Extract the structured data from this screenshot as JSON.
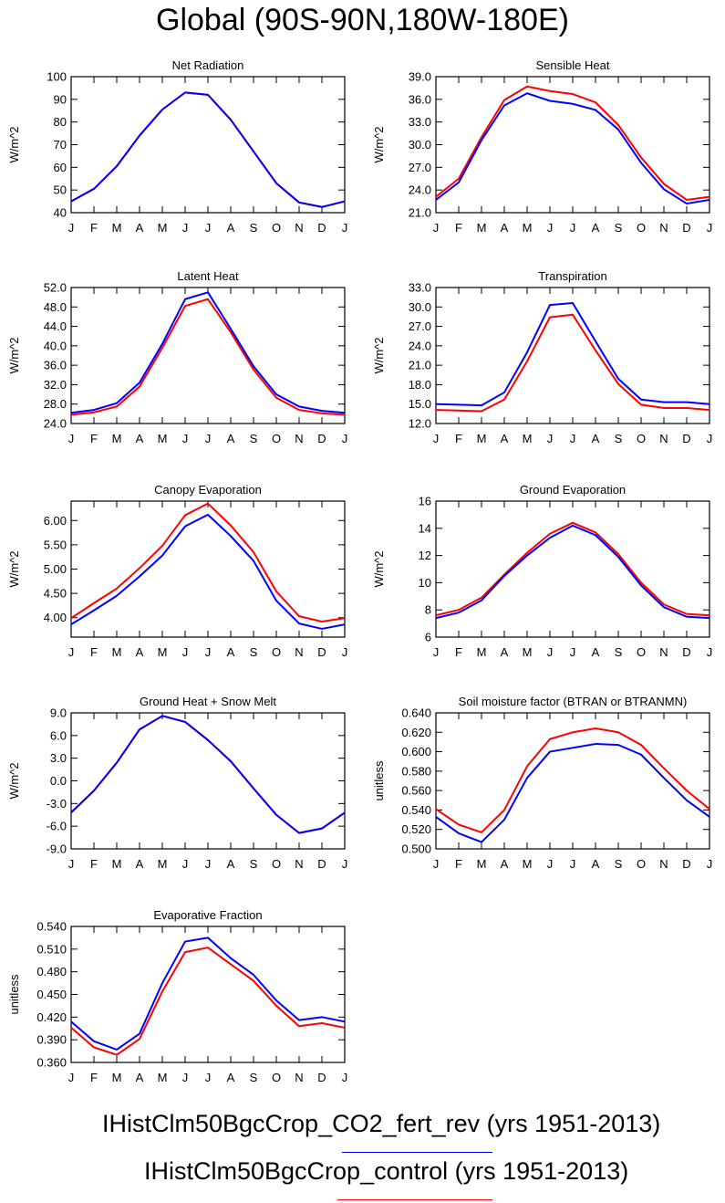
{
  "title": "Global (90S-90N,180W-180E)",
  "months": [
    "J",
    "F",
    "M",
    "A",
    "M",
    "J",
    "J",
    "A",
    "S",
    "O",
    "N",
    "D",
    "J"
  ],
  "colors": {
    "case1": "#0000ff",
    "case2": "#ff0000"
  },
  "legend": [
    {
      "label": "IHistClm50BgcCrop_CO2_fert_rev (yrs 1951-2013)",
      "color": "#0000ff"
    },
    {
      "label": "IHistClm50BgcCrop_control (yrs 1951-2013)",
      "color": "#ff0000"
    }
  ],
  "chart_data": [
    {
      "type": "line",
      "title": "Net Radiation",
      "ylabel": "W/m^2",
      "ylim": [
        40,
        100
      ],
      "yticks": [
        "40",
        "50",
        "60",
        "70",
        "80",
        "90",
        "100"
      ],
      "series": [
        {
          "values": [
            45.0,
            50.5,
            60.5,
            74.0,
            85.5,
            93.0,
            92.0,
            81.0,
            67.0,
            53.0,
            44.5,
            42.5,
            45.0
          ]
        },
        {
          "values": [
            45.0,
            50.5,
            60.5,
            74.0,
            85.5,
            93.0,
            92.0,
            81.0,
            67.0,
            53.0,
            44.5,
            42.5,
            45.0
          ]
        }
      ]
    },
    {
      "type": "line",
      "title": "Sensible Heat",
      "ylabel": "W/m^2",
      "ylim": [
        21,
        39
      ],
      "yticks": [
        "21.0",
        "24.0",
        "27.0",
        "30.0",
        "33.0",
        "36.0",
        "39.0"
      ],
      "series": [
        {
          "values": [
            22.7,
            25.0,
            30.6,
            35.2,
            36.8,
            35.8,
            35.4,
            34.6,
            32.0,
            27.6,
            24.1,
            22.2,
            22.7
          ]
        },
        {
          "values": [
            23.1,
            25.5,
            31.0,
            35.9,
            37.7,
            37.1,
            36.7,
            35.6,
            32.6,
            28.3,
            24.8,
            22.7,
            23.1
          ]
        }
      ]
    },
    {
      "type": "line",
      "title": "Latent Heat",
      "ylabel": "W/m^2",
      "ylim": [
        24,
        52
      ],
      "yticks": [
        "24.0",
        "28.0",
        "32.0",
        "36.0",
        "40.0",
        "44.0",
        "48.0",
        "52.0"
      ],
      "series": [
        {
          "values": [
            26.2,
            26.8,
            28.2,
            32.4,
            40.4,
            49.6,
            51.0,
            43.5,
            35.8,
            30.0,
            27.5,
            26.6,
            26.2
          ]
        },
        {
          "values": [
            25.8,
            26.3,
            27.5,
            31.6,
            39.6,
            48.2,
            49.6,
            42.8,
            35.1,
            29.3,
            26.8,
            26.1,
            25.8
          ]
        }
      ]
    },
    {
      "type": "line",
      "title": "Transpiration",
      "ylabel": "W/m^2",
      "ylim": [
        12,
        33
      ],
      "yticks": [
        "12.0",
        "15.0",
        "18.0",
        "21.0",
        "24.0",
        "27.0",
        "30.0",
        "33.0"
      ],
      "series": [
        {
          "values": [
            15.0,
            14.9,
            14.8,
            16.8,
            23.0,
            30.3,
            30.6,
            24.7,
            18.9,
            15.7,
            15.3,
            15.3,
            15.0
          ]
        },
        {
          "values": [
            14.1,
            14.0,
            13.9,
            15.7,
            21.6,
            28.4,
            28.8,
            23.3,
            18.1,
            14.9,
            14.4,
            14.4,
            14.1
          ]
        }
      ]
    },
    {
      "type": "line",
      "title": "Canopy Evaporation",
      "ylabel": "W/m^2",
      "ylim": [
        3.6,
        6.4
      ],
      "yticks": [
        "4.00",
        "4.50",
        "5.00",
        "5.50",
        "6.00"
      ],
      "ytickvals": [
        4.0,
        4.5,
        5.0,
        5.5,
        6.0
      ],
      "series": [
        {
          "values": [
            3.86,
            4.15,
            4.45,
            4.85,
            5.28,
            5.88,
            6.12,
            5.68,
            5.17,
            4.35,
            3.88,
            3.77,
            3.86
          ]
        },
        {
          "values": [
            3.99,
            4.3,
            4.6,
            5.02,
            5.48,
            6.11,
            6.35,
            5.9,
            5.35,
            4.54,
            4.03,
            3.92,
            3.99
          ]
        }
      ]
    },
    {
      "type": "line",
      "title": "Ground Evaporation",
      "ylabel": "W/m^2",
      "ylim": [
        6,
        16
      ],
      "yticks": [
        "6",
        "8",
        "10",
        "12",
        "14",
        "16"
      ],
      "series": [
        {
          "values": [
            7.4,
            7.8,
            8.7,
            10.5,
            12.0,
            13.3,
            14.2,
            13.5,
            11.9,
            9.8,
            8.2,
            7.5,
            7.4
          ]
        },
        {
          "values": [
            7.6,
            8.0,
            8.9,
            10.6,
            12.2,
            13.6,
            14.4,
            13.7,
            12.1,
            10.0,
            8.4,
            7.7,
            7.6
          ]
        }
      ]
    },
    {
      "type": "line",
      "title": "Ground Heat + Snow Melt",
      "ylabel": "W/m^2",
      "ylim": [
        -9,
        9
      ],
      "yticks": [
        "-9.0",
        "-6.0",
        "-3.0",
        "0.0",
        "3.0",
        "6.0",
        "9.0"
      ],
      "series": [
        {
          "values": [
            -4.2,
            -1.3,
            2.4,
            6.8,
            8.6,
            7.8,
            5.4,
            2.6,
            -1.0,
            -4.5,
            -6.9,
            -6.3,
            -4.2
          ]
        },
        {
          "values": [
            -4.2,
            -1.3,
            2.4,
            6.8,
            8.6,
            7.8,
            5.4,
            2.6,
            -1.0,
            -4.5,
            -6.9,
            -6.3,
            -4.2
          ]
        }
      ]
    },
    {
      "type": "line",
      "title": "Soil moisture factor (BTRAN or BTRANMN)",
      "ylabel": "unitless",
      "ylim": [
        0.5,
        0.64
      ],
      "yticks": [
        "0.500",
        "0.520",
        "0.540",
        "0.560",
        "0.580",
        "0.600",
        "0.620",
        "0.640"
      ],
      "series": [
        {
          "values": [
            0.533,
            0.516,
            0.507,
            0.53,
            0.573,
            0.6,
            0.604,
            0.608,
            0.607,
            0.597,
            0.573,
            0.55,
            0.533
          ]
        },
        {
          "values": [
            0.541,
            0.525,
            0.517,
            0.54,
            0.585,
            0.613,
            0.62,
            0.624,
            0.62,
            0.607,
            0.583,
            0.56,
            0.541
          ]
        }
      ]
    },
    {
      "type": "line",
      "title": "Evaporative Fraction",
      "ylabel": "unitless",
      "ylim": [
        0.36,
        0.54
      ],
      "yticks": [
        "0.360",
        "0.390",
        "0.420",
        "0.450",
        "0.480",
        "0.510",
        "0.540"
      ],
      "series": [
        {
          "values": [
            0.414,
            0.388,
            0.377,
            0.398,
            0.465,
            0.52,
            0.525,
            0.498,
            0.476,
            0.442,
            0.416,
            0.42,
            0.414
          ]
        },
        {
          "values": [
            0.406,
            0.38,
            0.37,
            0.391,
            0.454,
            0.506,
            0.512,
            0.49,
            0.468,
            0.435,
            0.408,
            0.412,
            0.406
          ]
        }
      ]
    }
  ]
}
